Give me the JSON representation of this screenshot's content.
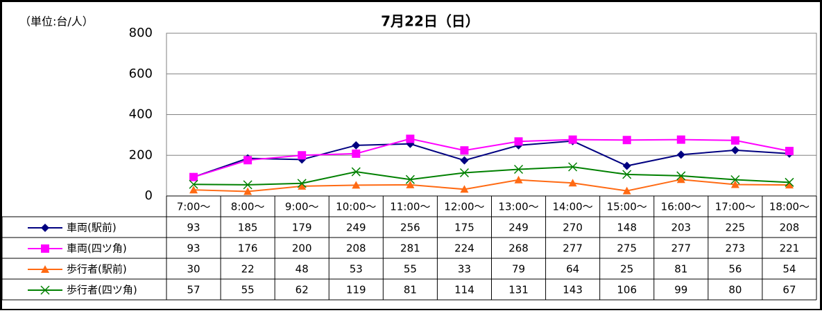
{
  "chart_data": {
    "type": "line",
    "title": "7月22日（日）",
    "unit_label": "（単位:台/人）",
    "categories": [
      "7:00～",
      "8:00～",
      "9:00～",
      "10:00～",
      "11:00～",
      "12:00～",
      "13:00～",
      "14:00～",
      "15:00～",
      "16:00～",
      "17:00～",
      "18:00～"
    ],
    "series": [
      {
        "name": "車両(駅前)",
        "color": "#000080",
        "marker": "diamond",
        "values": [
          93,
          185,
          179,
          249,
          256,
          175,
          249,
          270,
          148,
          203,
          225,
          208
        ]
      },
      {
        "name": "車両(四ツ角)",
        "color": "#ff00ff",
        "marker": "square",
        "values": [
          93,
          176,
          200,
          208,
          281,
          224,
          268,
          277,
          275,
          277,
          273,
          221
        ]
      },
      {
        "name": "歩行者(駅前)",
        "color": "#ff6a13",
        "marker": "triangle",
        "values": [
          30,
          22,
          48,
          53,
          55,
          33,
          79,
          64,
          25,
          81,
          56,
          54
        ]
      },
      {
        "name": "歩行者(四ツ角)",
        "color": "#008000",
        "marker": "x",
        "values": [
          57,
          55,
          62,
          119,
          81,
          114,
          131,
          143,
          106,
          99,
          80,
          67
        ]
      }
    ],
    "ylim": [
      0,
      800
    ],
    "yticks": [
      0,
      200,
      400,
      600,
      800
    ],
    "grid": true,
    "data_table": true
  }
}
